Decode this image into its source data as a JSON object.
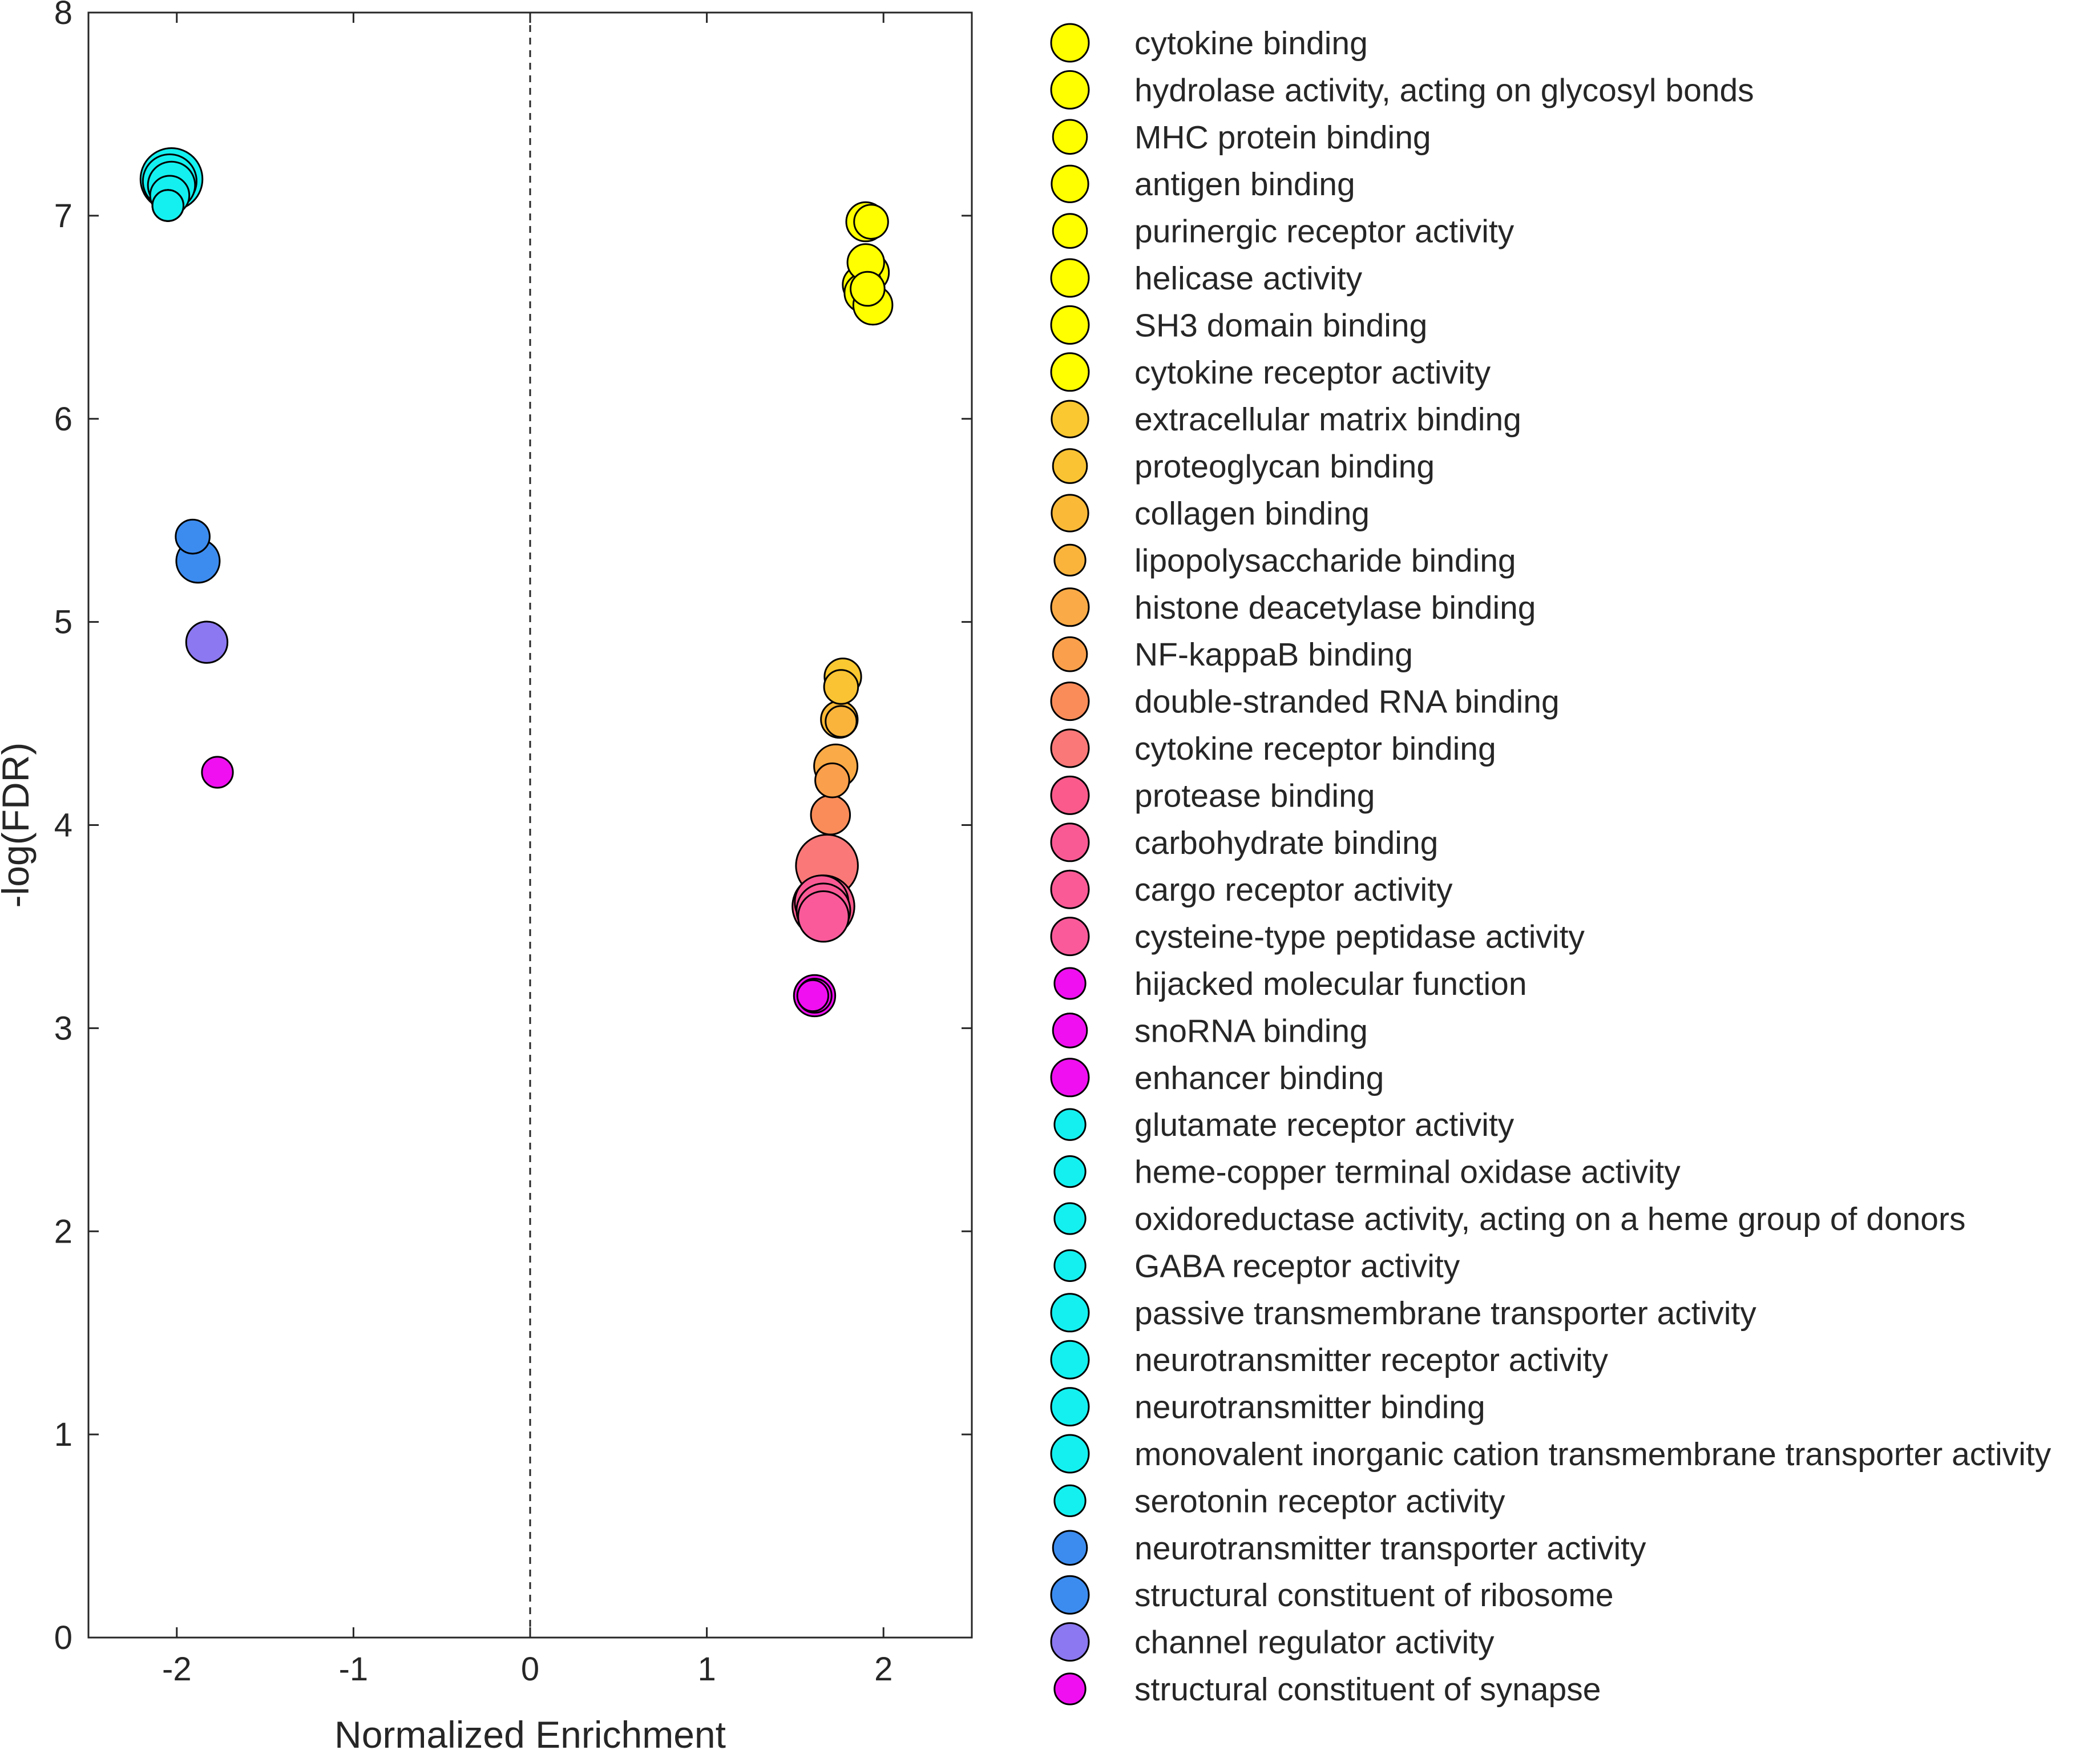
{
  "chart_data": {
    "type": "scatter",
    "title": "",
    "xlabel": "Normalized Enrichment",
    "ylabel": "-log(FDR)",
    "xlim": [
      -2.5,
      2.5
    ],
    "ylim": [
      0,
      8
    ],
    "xticks": [
      -2,
      -1,
      0,
      1,
      2
    ],
    "yticks": [
      0,
      1,
      2,
      3,
      4,
      5,
      6,
      7,
      8
    ],
    "xtick_labels": [
      "-2",
      "-1",
      "0",
      "1",
      "2"
    ],
    "ytick_labels": [
      "0",
      "1",
      "2",
      "3",
      "4",
      "5",
      "6",
      "7",
      "8"
    ],
    "grid": false,
    "reference_line": {
      "x": 0,
      "style": "dashed"
    },
    "legend_position": "right-outside",
    "series": [
      {
        "name": "cytokine binding",
        "x": 1.9,
        "y": 6.97,
        "size": 3,
        "color": "#ffff00"
      },
      {
        "name": "hydrolase activity, acting on glycosyl bonds",
        "x": 1.92,
        "y": 6.72,
        "size": 3,
        "color": "#ffff00"
      },
      {
        "name": "MHC protein binding",
        "x": 1.93,
        "y": 6.97,
        "size": 2,
        "color": "#ffff00"
      },
      {
        "name": "antigen binding",
        "x": 1.9,
        "y": 6.77,
        "size": 2.5,
        "color": "#ffff00"
      },
      {
        "name": "purinergic receptor activity",
        "x": 1.91,
        "y": 6.64,
        "size": 2,
        "color": "#ffff00"
      },
      {
        "name": "helicase activity",
        "x": 1.88,
        "y": 6.66,
        "size": 3,
        "color": "#ffff00"
      },
      {
        "name": "SH3 domain binding",
        "x": 1.89,
        "y": 6.62,
        "size": 3,
        "color": "#ffff00"
      },
      {
        "name": "cytokine receptor activity",
        "x": 1.94,
        "y": 6.56,
        "size": 3,
        "color": "#ffff00"
      },
      {
        "name": "extracellular matrix binding",
        "x": 1.77,
        "y": 4.73,
        "size": 2.5,
        "color": "#fac830"
      },
      {
        "name": "proteoglycan binding",
        "x": 1.76,
        "y": 4.68,
        "size": 2,
        "color": "#fac333"
      },
      {
        "name": "collagen binding",
        "x": 1.75,
        "y": 4.52,
        "size": 2.5,
        "color": "#fab937"
      },
      {
        "name": "lipopolysaccharide binding",
        "x": 1.76,
        "y": 4.51,
        "size": 1.5,
        "color": "#fab43c"
      },
      {
        "name": "histone deacetylase binding",
        "x": 1.73,
        "y": 4.29,
        "size": 4,
        "color": "#faaa46"
      },
      {
        "name": "NF-kappaB binding",
        "x": 1.71,
        "y": 4.22,
        "size": 2,
        "color": "#fa9f4b"
      },
      {
        "name": "double-stranded RNA binding",
        "x": 1.7,
        "y": 4.05,
        "size": 3,
        "color": "#fa8c5a"
      },
      {
        "name": "cytokine receptor binding",
        "x": 1.68,
        "y": 3.8,
        "size": 10,
        "color": "#fa7878"
      },
      {
        "name": "protease binding",
        "x": 1.66,
        "y": 3.6,
        "size": 10,
        "color": "#fa5a8c"
      },
      {
        "name": "carbohydrate binding",
        "x": 1.65,
        "y": 3.62,
        "size": 7,
        "color": "#fa5a94"
      },
      {
        "name": "cargo receptor activity",
        "x": 1.66,
        "y": 3.58,
        "size": 7,
        "color": "#fa5a96"
      },
      {
        "name": "cysteine-type peptidase activity",
        "x": 1.66,
        "y": 3.55,
        "size": 6,
        "color": "#fa5a9a"
      },
      {
        "name": "hijacked molecular function",
        "x": 1.6,
        "y": 3.16,
        "size": 1.5,
        "color": "#f00ff0"
      },
      {
        "name": "snoRNA binding",
        "x": 1.61,
        "y": 3.16,
        "size": 2,
        "color": "#f00ff0"
      },
      {
        "name": "enhancer binding",
        "x": 1.61,
        "y": 3.16,
        "size": 3.5,
        "color": "#f00ff0"
      },
      {
        "name": "glutamate receptor activity",
        "x": -2.05,
        "y": 7.05,
        "size": 1.5,
        "color": "#14f0f0"
      },
      {
        "name": "heme-copper terminal oxidase activity",
        "x": -2.05,
        "y": 7.05,
        "size": 1.5,
        "color": "#14f0f0"
      },
      {
        "name": "oxidoreductase activity, acting on a heme group of donors",
        "x": -2.05,
        "y": 7.05,
        "size": 1.5,
        "color": "#14f0f0"
      },
      {
        "name": "GABA receptor activity",
        "x": -2.05,
        "y": 7.05,
        "size": 1.5,
        "color": "#14f0f0"
      },
      {
        "name": "passive transmembrane transporter activity",
        "x": -2.03,
        "y": 7.18,
        "size": 10,
        "color": "#14f0f0"
      },
      {
        "name": "neurotransmitter receptor activity",
        "x": -2.04,
        "y": 7.17,
        "size": 7,
        "color": "#14f0f0"
      },
      {
        "name": "neurotransmitter binding",
        "x": -2.04,
        "y": 7.1,
        "size": 3,
        "color": "#14f0f0"
      },
      {
        "name": "monovalent inorganic cation transmembrane transporter activity",
        "x": -2.03,
        "y": 7.15,
        "size": 5,
        "color": "#14f0f0"
      },
      {
        "name": "serotonin receptor activity",
        "x": -2.05,
        "y": 7.05,
        "size": 1.5,
        "color": "#14f0f0"
      },
      {
        "name": "neurotransmitter transporter activity",
        "x": -1.91,
        "y": 5.42,
        "size": 2,
        "color": "#3c8cf0"
      },
      {
        "name": "structural constituent of ribosome",
        "x": -1.88,
        "y": 5.3,
        "size": 4,
        "color": "#3c8cf0"
      },
      {
        "name": "channel regulator activity",
        "x": -1.83,
        "y": 4.9,
        "size": 3.5,
        "color": "#8c78f0"
      },
      {
        "name": "structural constituent of synapse",
        "x": -1.77,
        "y": 4.26,
        "size": 1.5,
        "color": "#f00ff0"
      }
    ]
  }
}
